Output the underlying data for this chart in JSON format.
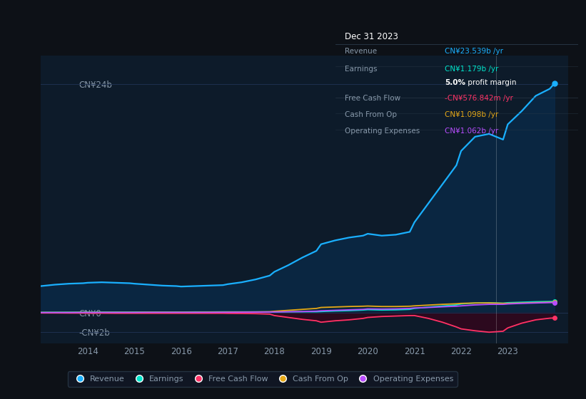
{
  "background_color": "#0d1117",
  "plot_bg_color": "#0d1b2a",
  "years": [
    2013.0,
    2013.3,
    2013.6,
    2013.9,
    2014.0,
    2014.3,
    2014.6,
    2014.9,
    2015.0,
    2015.3,
    2015.6,
    2015.9,
    2016.0,
    2016.3,
    2016.6,
    2016.9,
    2017.0,
    2017.3,
    2017.6,
    2017.9,
    2018.0,
    2018.3,
    2018.6,
    2018.9,
    2019.0,
    2019.3,
    2019.6,
    2019.9,
    2020.0,
    2020.3,
    2020.6,
    2020.9,
    2021.0,
    2021.3,
    2021.6,
    2021.9,
    2022.0,
    2022.3,
    2022.6,
    2022.9,
    2023.0,
    2023.3,
    2023.6,
    2023.9,
    2024.0
  ],
  "revenue": [
    2.8,
    2.95,
    3.05,
    3.1,
    3.15,
    3.2,
    3.15,
    3.1,
    3.05,
    2.95,
    2.85,
    2.8,
    2.75,
    2.8,
    2.85,
    2.9,
    3.0,
    3.2,
    3.5,
    3.9,
    4.3,
    5.0,
    5.8,
    6.5,
    7.2,
    7.6,
    7.9,
    8.1,
    8.3,
    8.1,
    8.2,
    8.5,
    9.5,
    11.5,
    13.5,
    15.5,
    17.0,
    18.5,
    18.8,
    18.2,
    19.8,
    21.2,
    22.8,
    23.539,
    24.1
  ],
  "earnings": [
    0.04,
    0.045,
    0.05,
    0.055,
    0.06,
    0.065,
    0.065,
    0.065,
    0.07,
    0.07,
    0.07,
    0.07,
    0.07,
    0.08,
    0.08,
    0.09,
    0.09,
    0.09,
    0.09,
    0.09,
    0.09,
    0.1,
    0.1,
    0.1,
    0.12,
    0.18,
    0.22,
    0.28,
    0.32,
    0.28,
    0.3,
    0.35,
    0.45,
    0.58,
    0.7,
    0.82,
    0.92,
    1.02,
    1.05,
    1.0,
    1.05,
    1.1,
    1.15,
    1.179,
    1.19
  ],
  "free_cash_flow": [
    -0.03,
    -0.03,
    -0.04,
    -0.04,
    -0.05,
    -0.05,
    -0.06,
    -0.06,
    -0.06,
    -0.06,
    -0.06,
    -0.06,
    -0.06,
    -0.06,
    -0.06,
    -0.06,
    -0.07,
    -0.08,
    -0.1,
    -0.15,
    -0.3,
    -0.5,
    -0.7,
    -0.85,
    -1.0,
    -0.85,
    -0.75,
    -0.6,
    -0.5,
    -0.4,
    -0.35,
    -0.3,
    -0.3,
    -0.6,
    -1.0,
    -1.5,
    -1.7,
    -1.9,
    -2.05,
    -1.95,
    -1.6,
    -1.1,
    -0.75,
    -0.5769,
    -0.55
  ],
  "cash_from_op": [
    0.02,
    0.02,
    0.02,
    0.03,
    0.03,
    0.03,
    0.03,
    0.03,
    0.03,
    0.04,
    0.04,
    0.04,
    0.04,
    0.04,
    0.05,
    0.05,
    0.06,
    0.07,
    0.08,
    0.1,
    0.15,
    0.25,
    0.35,
    0.45,
    0.55,
    0.6,
    0.65,
    0.68,
    0.7,
    0.65,
    0.65,
    0.68,
    0.72,
    0.8,
    0.88,
    0.94,
    0.98,
    1.02,
    1.03,
    0.98,
    0.98,
    1.02,
    1.06,
    1.098,
    1.1
  ],
  "operating_expenses": [
    0.01,
    0.01,
    0.01,
    0.02,
    0.02,
    0.02,
    0.02,
    0.02,
    0.02,
    0.03,
    0.03,
    0.03,
    0.03,
    0.03,
    0.03,
    0.04,
    0.04,
    0.05,
    0.06,
    0.07,
    0.08,
    0.1,
    0.12,
    0.16,
    0.2,
    0.25,
    0.3,
    0.35,
    0.4,
    0.38,
    0.4,
    0.45,
    0.5,
    0.55,
    0.62,
    0.68,
    0.72,
    0.82,
    0.88,
    0.88,
    0.92,
    0.98,
    1.02,
    1.062,
    1.07
  ],
  "revenue_color": "#1ab0ff",
  "earnings_color": "#00e5cc",
  "free_cash_flow_color": "#ff3366",
  "cash_from_op_color": "#e6a817",
  "operating_expenses_color": "#b84dff",
  "revenue_fill_alpha": 0.75,
  "free_cash_flow_fill_alpha": 0.65,
  "grid_color": "#1e3050",
  "text_color": "#8899aa",
  "info_box_bg": "#050a14",
  "info_box_border": "#2a3a4a",
  "x_ticks": [
    2014,
    2015,
    2016,
    2017,
    2018,
    2019,
    2020,
    2021,
    2022,
    2023
  ],
  "y_tick_vals": [
    -2,
    0,
    24
  ],
  "y_tick_labels": [
    "-CN¥2b",
    "CN¥0",
    "CN¥24b"
  ],
  "xlim": [
    2013.0,
    2024.3
  ],
  "ylim": [
    -3.2,
    27.0
  ],
  "legend_items": [
    {
      "label": "Revenue",
      "color": "#1ab0ff"
    },
    {
      "label": "Earnings",
      "color": "#00e5cc"
    },
    {
      "label": "Free Cash Flow",
      "color": "#ff3366"
    },
    {
      "label": "Cash From Op",
      "color": "#e6a817"
    },
    {
      "label": "Operating Expenses",
      "color": "#b84dff"
    }
  ],
  "info_box": {
    "title": "Dec 31 2023",
    "rows": [
      {
        "label": "Revenue",
        "value": "CN¥23.539b /yr",
        "value_color": "#1ab0ff"
      },
      {
        "label": "Earnings",
        "value": "CN¥1.179b /yr",
        "value_color": "#00e5cc"
      },
      {
        "label": "",
        "value": "5.0% profit margin",
        "bold_part": "5.0%",
        "rest": " profit margin"
      },
      {
        "label": "Free Cash Flow",
        "value": "-CN¥576.842m /yr",
        "value_color": "#ff3366"
      },
      {
        "label": "Cash From Op",
        "value": "CN¥1.098b /yr",
        "value_color": "#e6a817"
      },
      {
        "label": "Operating Expenses",
        "value": "CN¥1.062b /yr",
        "value_color": "#b84dff"
      }
    ]
  },
  "vertical_line_x": 2022.75,
  "legend_bg": "#111827",
  "legend_border": "#2a3a4a"
}
